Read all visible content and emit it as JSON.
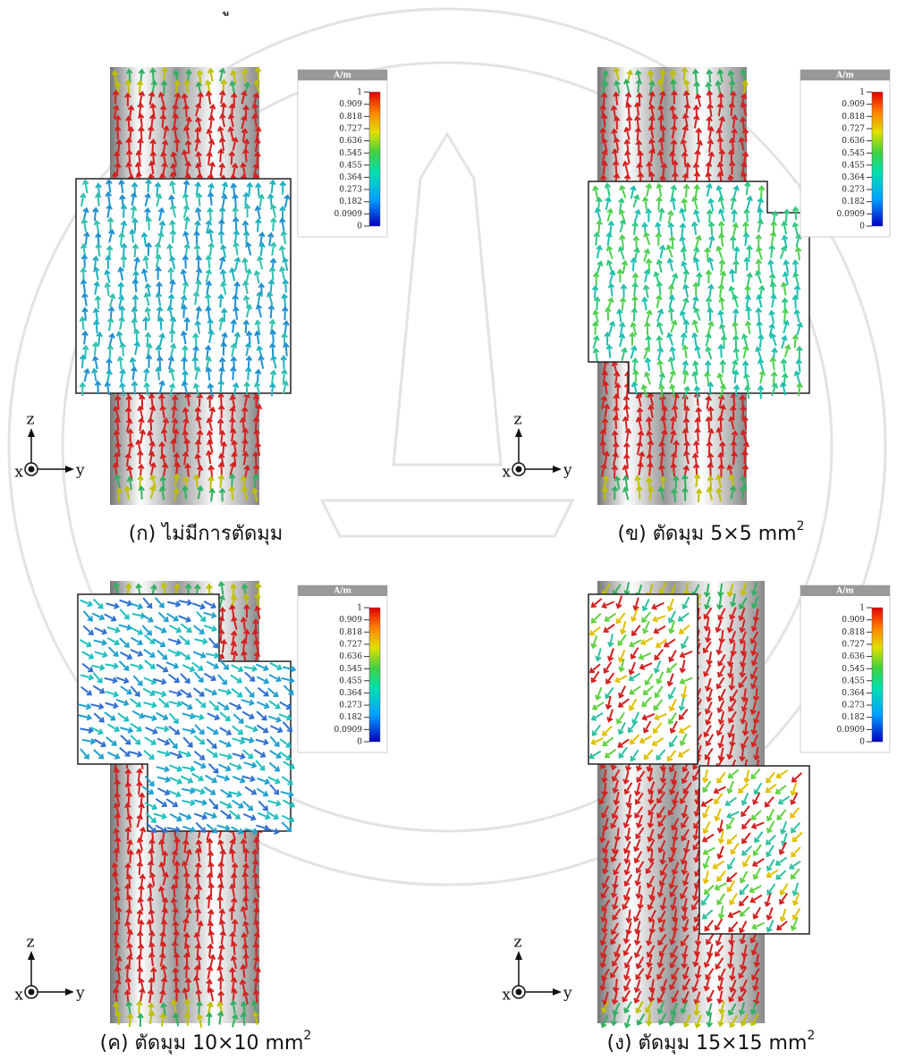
{
  "fragment": "ู",
  "colorbar": {
    "title": "A/m",
    "range": [
      0,
      1
    ],
    "ticks": [
      0,
      0.0909,
      0.182,
      0.273,
      0.364,
      0.455,
      0.545,
      0.636,
      0.727,
      0.818,
      0.909,
      1
    ]
  },
  "axes": {
    "z": "z",
    "x": "x",
    "y": "y"
  },
  "panels": [
    {
      "caption": "(ก) ไม่มีการตัดมุม"
    },
    {
      "caption": "(ข) ตัดมุม 5×5 mm",
      "sup": "2"
    },
    {
      "caption": "(ค) ตัดมุม 10×10 mm",
      "sup": "2"
    },
    {
      "caption": "(ง) ตัดมุม 15×15 mm",
      "sup": "2"
    }
  ]
}
